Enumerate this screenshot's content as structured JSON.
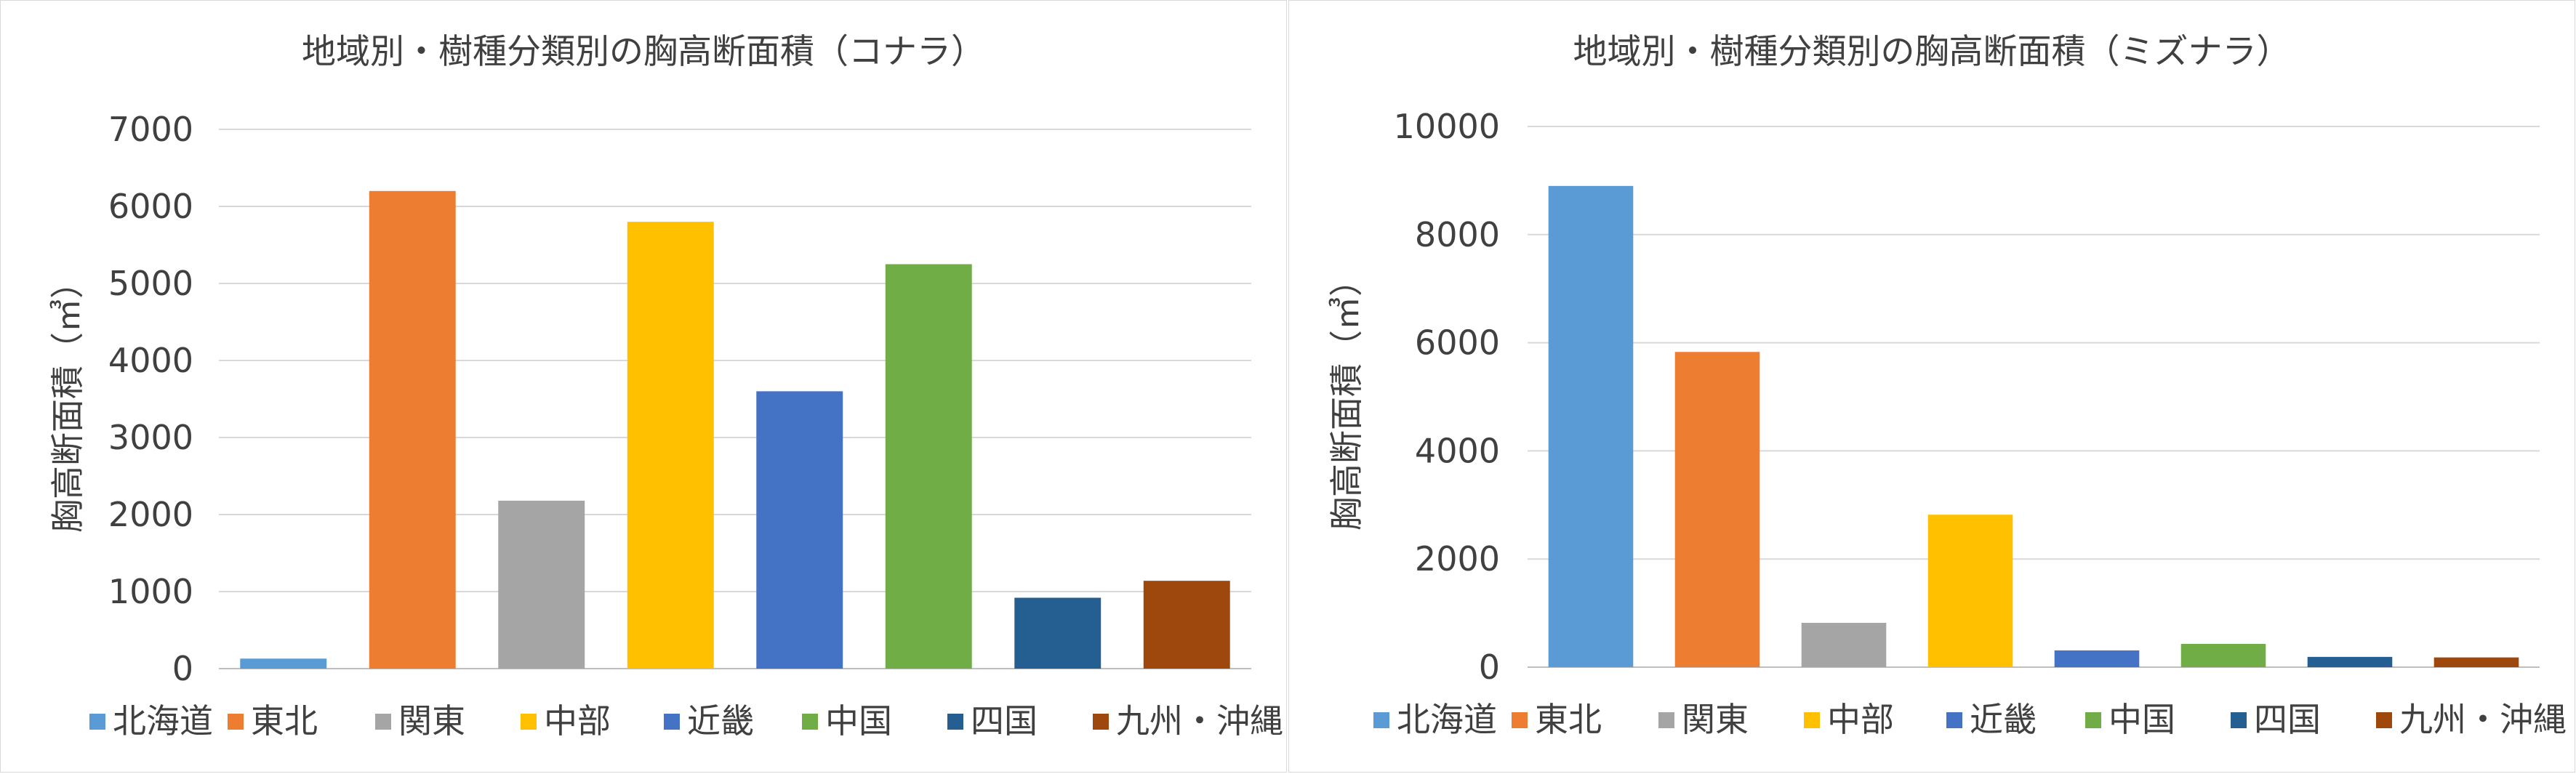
{
  "chart_data": [
    {
      "type": "bar",
      "title": "地域別・樹種分類別の胸高断面積（コナラ）",
      "ylabel": "胸高断面積（㎥）",
      "xlabel": "",
      "categories": [
        "北海道",
        "東北",
        "関東",
        "中部",
        "近畿",
        "中国",
        "四国",
        "九州・沖縄"
      ],
      "values": [
        130,
        6200,
        2180,
        5800,
        3600,
        5250,
        920,
        1140
      ],
      "colors": [
        "#5b9bd5",
        "#ed7d31",
        "#a5a5a5",
        "#ffc000",
        "#4472c4",
        "#70ad47",
        "#255e91",
        "#9e480e"
      ],
      "ylim": [
        0,
        7000
      ],
      "yticks": [
        0,
        1000,
        2000,
        3000,
        4000,
        5000,
        6000,
        7000
      ],
      "ytick_labels": [
        "0",
        "1000",
        "2000",
        "3000",
        "4000",
        "5000",
        "6000",
        "7000"
      ],
      "grid": true,
      "legend": "bottom"
    },
    {
      "type": "bar",
      "title": "地域別・樹種分類別の胸高断面積（ミズナラ）",
      "ylabel": "胸高断面積（㎥）",
      "xlabel": "",
      "categories": [
        "北海道",
        "東北",
        "関東",
        "中部",
        "近畿",
        "中国",
        "四国",
        "九州・沖縄"
      ],
      "values": [
        8900,
        5830,
        820,
        2820,
        310,
        430,
        190,
        180
      ],
      "colors": [
        "#5b9bd5",
        "#ed7d31",
        "#a5a5a5",
        "#ffc000",
        "#4472c4",
        "#70ad47",
        "#255e91",
        "#9e480e"
      ],
      "ylim": [
        0,
        10000
      ],
      "yticks": [
        0,
        2000,
        4000,
        6000,
        8000,
        10000
      ],
      "ytick_labels": [
        "0",
        "2000",
        "4000",
        "6000",
        "8000",
        "10000"
      ],
      "grid": true,
      "legend": "bottom"
    }
  ]
}
